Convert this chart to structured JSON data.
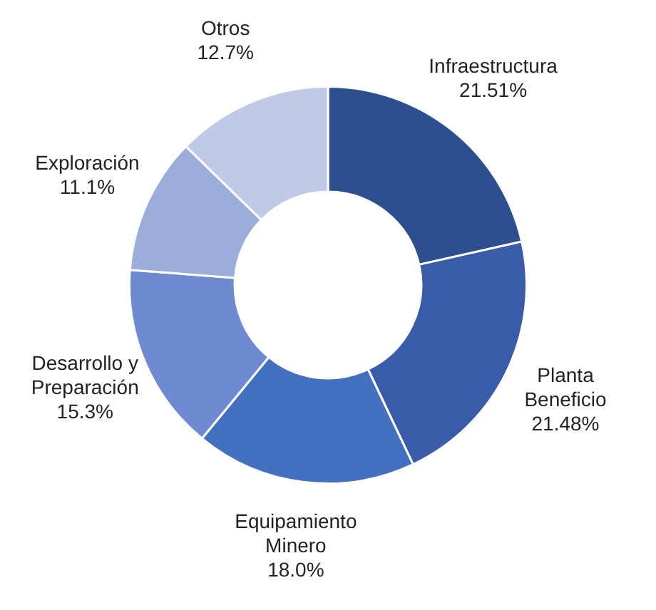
{
  "chart_data": {
    "type": "donut",
    "categories": [
      "Infraestructura",
      "Planta Beneficio",
      "Equipamiento Minero",
      "Desarrollo y Preparación",
      "Exploración",
      "Otros"
    ],
    "values": [
      21.51,
      21.48,
      18.0,
      15.3,
      11.1,
      12.7
    ],
    "value_labels": [
      "21.51%",
      "21.48%",
      "18.0%",
      "15.3%",
      "11.1%",
      "12.7%"
    ],
    "colors": [
      "#2e4f8f",
      "#3a5ca8",
      "#4470c0",
      "#6f8ad0",
      "#9dadd9",
      "#c0cae6"
    ],
    "legend": false
  }
}
